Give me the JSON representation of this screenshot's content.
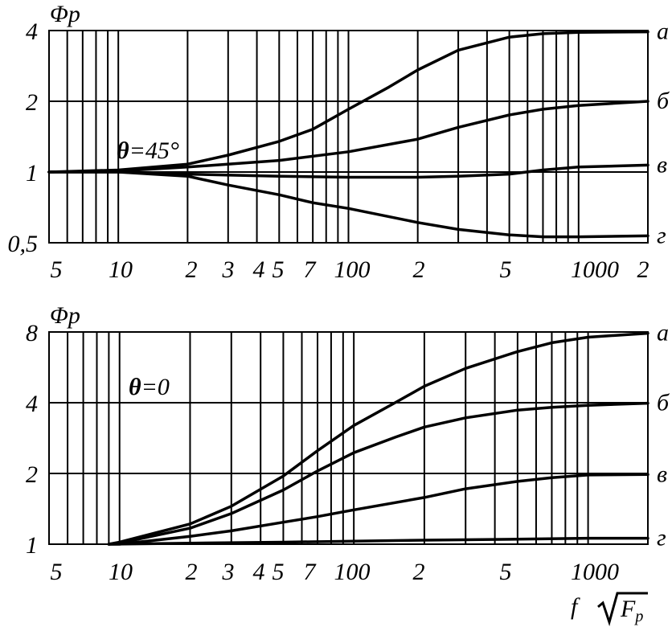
{
  "chart_data": [
    {
      "type": "line",
      "annotation": "θ=45°",
      "ylabel": "Φр",
      "y_scale": "log",
      "x_scale": "log",
      "xlim": [
        5,
        2000
      ],
      "ylim": [
        0.5,
        4
      ],
      "yticks": [
        {
          "value": 4,
          "label": "4"
        },
        {
          "value": 2,
          "label": "2"
        },
        {
          "value": 1,
          "label": "1"
        },
        {
          "value": 0.5,
          "label": "0,5"
        }
      ],
      "xticks": [
        {
          "value": 5,
          "label": "5"
        },
        {
          "value": 10,
          "label": "10"
        },
        {
          "value": 20,
          "label": "2"
        },
        {
          "value": 30,
          "label": "3"
        },
        {
          "value": 40,
          "label": "4"
        },
        {
          "value": 50,
          "label": "5"
        },
        {
          "value": 70,
          "label": "7"
        },
        {
          "value": 100,
          "label": "100"
        },
        {
          "value": 200,
          "label": "2"
        },
        {
          "value": 500,
          "label": "5"
        },
        {
          "value": 1000,
          "label": "1000"
        },
        {
          "value": 2000,
          "label": "2"
        }
      ],
      "gridlines_x": [
        5,
        6,
        7,
        8,
        9,
        10,
        20,
        30,
        40,
        50,
        60,
        70,
        80,
        90,
        100,
        200,
        300,
        400,
        500,
        600,
        700,
        800,
        900,
        1000,
        2000
      ],
      "series": [
        {
          "name": "а",
          "x": [
            5,
            10,
            20,
            30,
            50,
            70,
            100,
            150,
            200,
            300,
            500,
            700,
            1000,
            2000
          ],
          "y": [
            1,
            1.02,
            1.08,
            1.18,
            1.35,
            1.52,
            1.85,
            2.3,
            2.72,
            3.3,
            3.75,
            3.88,
            3.93,
            3.95
          ]
        },
        {
          "name": "б",
          "x": [
            5,
            10,
            20,
            50,
            100,
            200,
            300,
            500,
            700,
            1000,
            2000
          ],
          "y": [
            1,
            1.01,
            1.05,
            1.12,
            1.22,
            1.38,
            1.55,
            1.75,
            1.85,
            1.92,
            2.0
          ]
        },
        {
          "name": "в",
          "x": [
            5,
            10,
            20,
            50,
            100,
            200,
            300,
            500,
            700,
            1000,
            2000
          ],
          "y": [
            1,
            1.0,
            0.98,
            0.96,
            0.95,
            0.95,
            0.96,
            0.98,
            1.02,
            1.05,
            1.07
          ]
        },
        {
          "name": "г",
          "x": [
            5,
            10,
            20,
            30,
            50,
            70,
            100,
            200,
            300,
            500,
            700,
            1000,
            2000
          ],
          "y": [
            1,
            1.0,
            0.96,
            0.88,
            0.8,
            0.74,
            0.7,
            0.61,
            0.57,
            0.54,
            0.53,
            0.53,
            0.535
          ]
        }
      ]
    },
    {
      "type": "line",
      "annotation": "θ=0",
      "ylabel": "Φр",
      "xlabel": "f √Fр",
      "y_scale": "log",
      "x_scale": "log",
      "xlim": [
        5,
        1800
      ],
      "ylim": [
        1,
        8
      ],
      "yticks": [
        {
          "value": 8,
          "label": "8"
        },
        {
          "value": 4,
          "label": "4"
        },
        {
          "value": 2,
          "label": "2"
        },
        {
          "value": 1,
          "label": "1"
        }
      ],
      "xticks": [
        {
          "value": 5,
          "label": "5"
        },
        {
          "value": 10,
          "label": "10"
        },
        {
          "value": 20,
          "label": "2"
        },
        {
          "value": 30,
          "label": "3"
        },
        {
          "value": 40,
          "label": "4"
        },
        {
          "value": 50,
          "label": "5"
        },
        {
          "value": 70,
          "label": "7"
        },
        {
          "value": 100,
          "label": "100"
        },
        {
          "value": 200,
          "label": "2"
        },
        {
          "value": 500,
          "label": "5"
        },
        {
          "value": 1000,
          "label": "1000"
        }
      ],
      "gridlines_x": [
        5,
        6,
        7,
        8,
        9,
        10,
        20,
        30,
        40,
        50,
        60,
        70,
        80,
        90,
        100,
        200,
        300,
        400,
        500,
        600,
        700,
        800,
        900,
        1000
      ],
      "series": [
        {
          "name": "а",
          "x": [
            9,
            10,
            20,
            30,
            50,
            70,
            100,
            150,
            200,
            300,
            500,
            700,
            1000,
            1800
          ],
          "y": [
            1,
            1.02,
            1.22,
            1.45,
            1.95,
            2.5,
            3.2,
            4.0,
            4.7,
            5.6,
            6.6,
            7.2,
            7.6,
            7.9
          ]
        },
        {
          "name": "б",
          "x": [
            9,
            10,
            20,
            30,
            50,
            70,
            100,
            150,
            200,
            300,
            500,
            700,
            1000,
            1800
          ],
          "y": [
            1,
            1.01,
            1.17,
            1.35,
            1.7,
            2.05,
            2.45,
            2.85,
            3.15,
            3.45,
            3.72,
            3.82,
            3.9,
            3.98
          ]
        },
        {
          "name": "в",
          "x": [
            9,
            10,
            20,
            30,
            50,
            70,
            100,
            200,
            300,
            500,
            700,
            1000,
            1800
          ],
          "y": [
            1,
            1.0,
            1.08,
            1.14,
            1.24,
            1.31,
            1.4,
            1.58,
            1.72,
            1.85,
            1.92,
            1.97,
            1.98
          ]
        },
        {
          "name": "г",
          "x": [
            9,
            20,
            50,
            100,
            200,
            500,
            1000,
            1800
          ],
          "y": [
            1,
            1.01,
            1.02,
            1.03,
            1.04,
            1.05,
            1.06,
            1.06
          ]
        }
      ]
    }
  ]
}
